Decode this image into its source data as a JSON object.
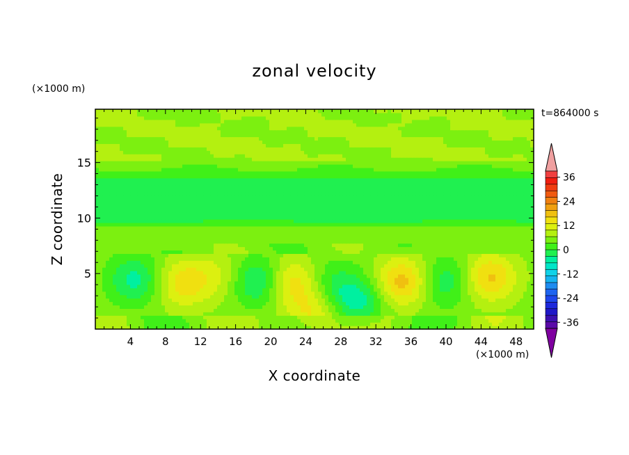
{
  "chart_data": {
    "type": "heatmap",
    "title": "zonal velocity",
    "xlabel": "X coordinate",
    "ylabel": "Z coordinate",
    "x_unit_label": "(×1000 m)",
    "y_unit_label": "(×1000 m)",
    "time_label": "t=864000 s",
    "xlim": [
      0,
      50
    ],
    "ylim": [
      0,
      19.8
    ],
    "x_ticks": [
      4,
      8,
      12,
      16,
      20,
      24,
      28,
      32,
      36,
      40,
      44,
      48
    ],
    "y_ticks": [
      5,
      10,
      15
    ],
    "colorbar": {
      "levels": [
        -42,
        -39,
        -36,
        -33,
        -30,
        -27,
        -24,
        -21,
        -18,
        -15,
        -12,
        -9,
        -6,
        -3,
        0,
        3,
        6,
        9,
        12,
        15,
        18,
        21,
        24,
        27,
        30,
        33,
        36,
        39,
        42
      ],
      "labels": [
        36,
        24,
        12,
        0,
        -12,
        -24,
        -36
      ],
      "colors": [
        "#7f00a0",
        "#5a0aa8",
        "#3c10b0",
        "#2018c8",
        "#1e28dc",
        "#1e46ec",
        "#1e64f0",
        "#1e8cf0",
        "#16b4f0",
        "#10d2e8",
        "#00e6c8",
        "#00f0a0",
        "#20f050",
        "#40f018",
        "#7cf010",
        "#b4f010",
        "#dcf010",
        "#f0e010",
        "#f0c010",
        "#f0a010",
        "#f08010",
        "#f05a10",
        "#f03c10",
        "#f01e10",
        "#f04040",
        "#f0a0a0"
      ],
      "extend": "both"
    },
    "field_description": "Zonal velocity contours; near 0 to 6 across most of the domain, a band of -3 to -6 between z=9 and z=14, and alternating positive/negative cells (about -9 to +9) below z=7."
  }
}
